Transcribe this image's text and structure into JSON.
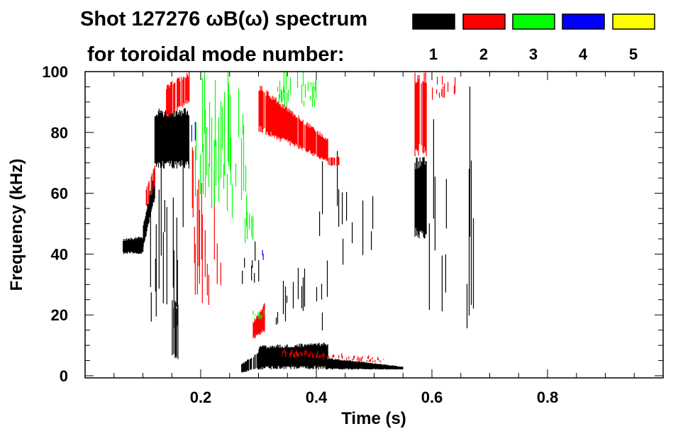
{
  "chart_data": {
    "type": "heatmap",
    "title_line1": "Shot 127276 ωB(ω) spectrum",
    "title_line2": "for toroidal mode number:",
    "xlabel": "Time (s)",
    "ylabel": "Frequency (kHz)",
    "xlim": [
      0,
      1.0
    ],
    "ylim": [
      0,
      100
    ],
    "xticks": [
      0.2,
      0.4,
      0.6,
      0.8
    ],
    "xtick_labels": [
      "0.2",
      "0.4",
      "0.6",
      "0.8"
    ],
    "yticks": [
      0,
      20,
      40,
      60,
      80,
      100
    ],
    "ytick_labels": [
      "0",
      "20",
      "40",
      "60",
      "80",
      "100"
    ],
    "x_minor_step": 0.05,
    "y_minor_step": 5,
    "legend": [
      {
        "label": "1",
        "color": "#000000"
      },
      {
        "label": "2",
        "color": "#ff0000"
      },
      {
        "label": "3",
        "color": "#00ff00"
      },
      {
        "label": "4",
        "color": "#0000ff"
      },
      {
        "label": "5",
        "color": "#ffff00"
      }
    ],
    "legend_placement": "top",
    "features": [
      {
        "mode": 1,
        "t": [
          0.065,
          0.1
        ],
        "f0": [
          40,
          40
        ],
        "f1": [
          45,
          46
        ],
        "density": 1.0
      },
      {
        "mode": 1,
        "t": [
          0.1,
          0.12
        ],
        "f0": [
          42,
          58
        ],
        "f1": [
          50,
          68
        ],
        "density": 1.0
      },
      {
        "mode": 1,
        "t": [
          0.12,
          0.18
        ],
        "f0": [
          68,
          68
        ],
        "f1": [
          88,
          88
        ],
        "density": 1.0
      },
      {
        "mode": 1,
        "t": [
          0.11,
          0.17
        ],
        "f0": [
          10,
          10
        ],
        "f1": [
          78,
          78
        ],
        "density": 0.35
      },
      {
        "mode": 1,
        "t": [
          0.15,
          0.16
        ],
        "f0": [
          5,
          5
        ],
        "f1": [
          25,
          25
        ],
        "density": 0.8
      },
      {
        "mode": 1,
        "t": [
          0.27,
          0.3
        ],
        "f0": [
          1,
          2
        ],
        "f1": [
          4,
          8
        ],
        "density": 0.8
      },
      {
        "mode": 1,
        "t": [
          0.3,
          0.42
        ],
        "f0": [
          2,
          2
        ],
        "f1": [
          10,
          11
        ],
        "density": 1.0
      },
      {
        "mode": 1,
        "t": [
          0.42,
          0.55
        ],
        "f0": [
          2,
          2
        ],
        "f1": [
          6,
          3
        ],
        "density": 1.0
      },
      {
        "mode": 1,
        "t": [
          0.27,
          0.3
        ],
        "f0": [
          30,
          30
        ],
        "f1": [
          45,
          45
        ],
        "density": 0.3
      },
      {
        "mode": 1,
        "t": [
          0.33,
          0.42
        ],
        "f0": [
          14,
          14
        ],
        "f1": [
          35,
          35
        ],
        "density": 0.25
      },
      {
        "mode": 1,
        "t": [
          0.4,
          0.5
        ],
        "f0": [
          35,
          35
        ],
        "f1": [
          70,
          70
        ],
        "density": 0.1
      },
      {
        "mode": 1,
        "t": [
          0.57,
          0.59
        ],
        "f0": [
          45,
          45
        ],
        "f1": [
          72,
          72
        ],
        "density": 1.0
      },
      {
        "mode": 1,
        "t": [
          0.59,
          0.63
        ],
        "f0": [
          15,
          15
        ],
        "f1": [
          90,
          90
        ],
        "density": 0.25
      },
      {
        "mode": 1,
        "t": [
          0.66,
          0.672
        ],
        "f0": [
          15,
          15
        ],
        "f1": [
          100,
          100
        ],
        "density": 0.5
      },
      {
        "mode": 2,
        "t": [
          0.105,
          0.12
        ],
        "f0": [
          55,
          62
        ],
        "f1": [
          62,
          70
        ],
        "density": 0.6
      },
      {
        "mode": 2,
        "t": [
          0.14,
          0.18
        ],
        "f0": [
          84,
          90
        ],
        "f1": [
          96,
          100
        ],
        "density": 0.8
      },
      {
        "mode": 2,
        "t": [
          0.18,
          0.24
        ],
        "f0": [
          20,
          20
        ],
        "f1": [
          80,
          80
        ],
        "density": 0.4
      },
      {
        "mode": 2,
        "t": [
          0.3,
          0.42
        ],
        "f0": [
          80,
          70
        ],
        "f1": [
          96,
          78
        ],
        "density": 0.9
      },
      {
        "mode": 2,
        "t": [
          0.42,
          0.44
        ],
        "f0": [
          69,
          69
        ],
        "f1": [
          72,
          72
        ],
        "density": 0.6
      },
      {
        "mode": 2,
        "t": [
          0.29,
          0.31
        ],
        "f0": [
          12,
          14
        ],
        "f1": [
          18,
          24
        ],
        "density": 0.9
      },
      {
        "mode": 2,
        "t": [
          0.34,
          0.52
        ],
        "f0": [
          6,
          4
        ],
        "f1": [
          9,
          6
        ],
        "density": 0.5
      },
      {
        "mode": 2,
        "t": [
          0.57,
          0.59
        ],
        "f0": [
          72,
          72
        ],
        "f1": [
          100,
          100
        ],
        "density": 0.8
      },
      {
        "mode": 2,
        "t": [
          0.6,
          0.64
        ],
        "f0": [
          90,
          90
        ],
        "f1": [
          100,
          100
        ],
        "density": 0.4
      },
      {
        "mode": 3,
        "t": [
          0.19,
          0.28
        ],
        "f0": [
          50,
          50
        ],
        "f1": [
          100,
          100
        ],
        "density": 0.35
      },
      {
        "mode": 3,
        "t": [
          0.33,
          0.4
        ],
        "f0": [
          88,
          88
        ],
        "f1": [
          100,
          100
        ],
        "density": 0.5
      },
      {
        "mode": 3,
        "t": [
          0.27,
          0.29
        ],
        "f0": [
          38,
          38
        ],
        "f1": [
          60,
          60
        ],
        "density": 0.4
      },
      {
        "mode": 3,
        "t": [
          0.29,
          0.31
        ],
        "f0": [
          18,
          18
        ],
        "f1": [
          22,
          22
        ],
        "density": 0.4
      },
      {
        "mode": 4,
        "t": [
          0.18,
          0.19
        ],
        "f0": [
          70,
          70
        ],
        "f1": [
          100,
          100
        ],
        "density": 0.3
      },
      {
        "mode": 4,
        "t": [
          0.3,
          0.31
        ],
        "f0": [
          38,
          38
        ],
        "f1": [
          42,
          42
        ],
        "density": 0.5
      }
    ]
  }
}
